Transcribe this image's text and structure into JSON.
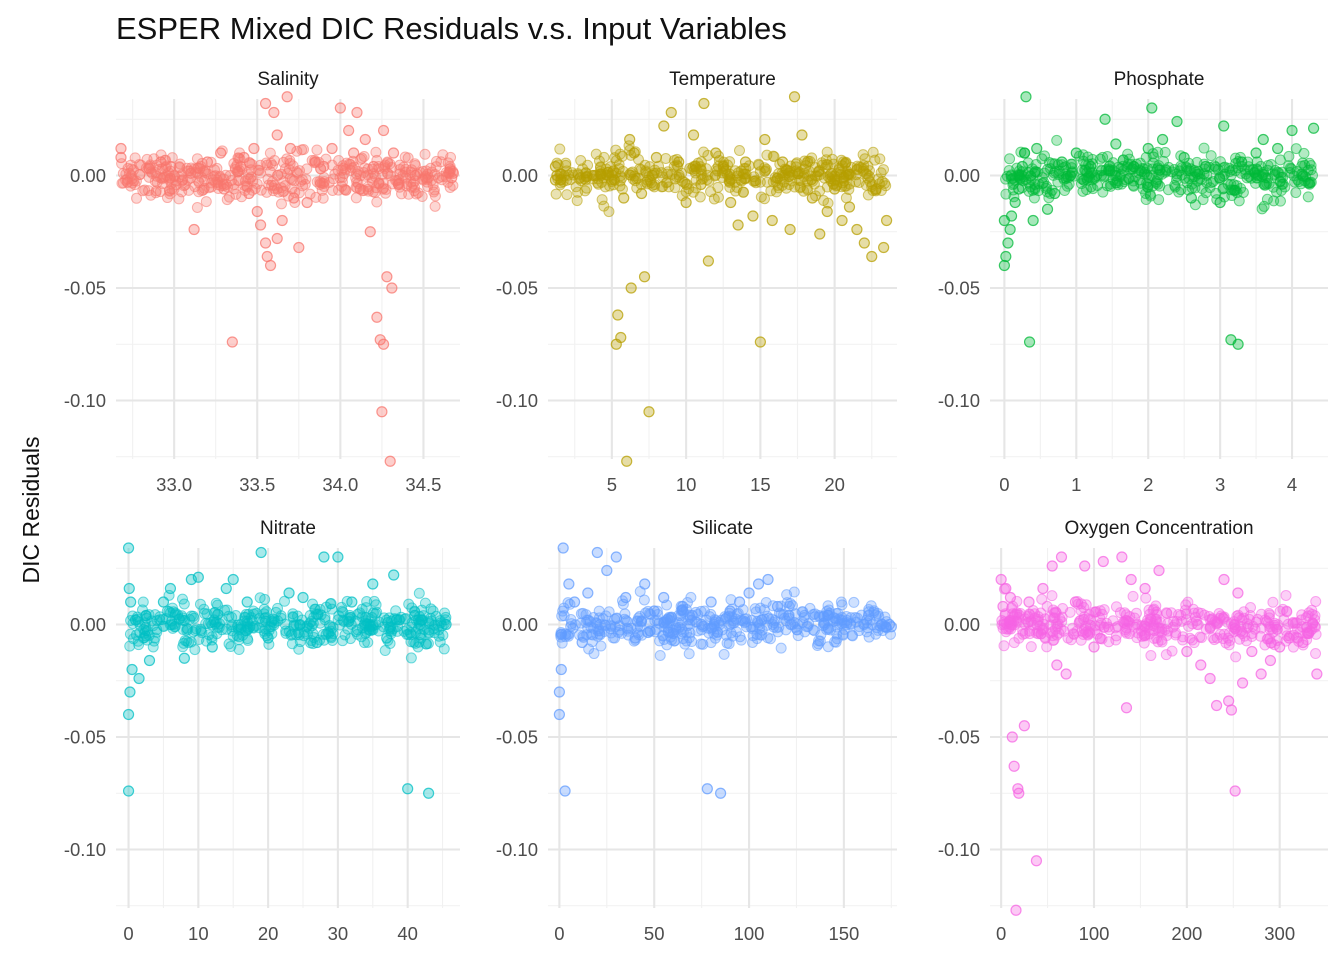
{
  "chart_data": {
    "type": "scatter",
    "title": "ESPER Mixed DIC Residuals v.s. Input Variables",
    "ylabel": "DIC Residuals",
    "grid": true,
    "legend": "none",
    "shared_y": {
      "ylim": [
        -0.126,
        0.034
      ],
      "ticks": [
        0.0,
        -0.05,
        -0.1
      ],
      "tick_labels": [
        "0.00",
        "-0.05",
        "-0.10"
      ]
    },
    "panels": [
      {
        "name": "Salinity",
        "color": "#F8766D",
        "xlim": [
          32.65,
          34.72
        ],
        "xticks": [
          33.0,
          33.5,
          34.0,
          34.5
        ],
        "xtick_labels": [
          "33.0",
          "33.5",
          "34.0",
          "34.5"
        ],
        "xminor": [
          32.75,
          33.25,
          33.75,
          34.25
        ],
        "points": [
          [
            32.68,
            0.012
          ],
          [
            32.68,
            0.008
          ],
          [
            32.72,
            -0.003
          ],
          [
            32.85,
            0.003
          ],
          [
            32.92,
            0.006
          ],
          [
            32.98,
            0.004
          ],
          [
            33.05,
            -0.002
          ],
          [
            33.1,
            0.001
          ],
          [
            33.12,
            -0.024
          ],
          [
            33.2,
            0.006
          ],
          [
            33.28,
            0.01
          ],
          [
            33.3,
            -0.006
          ],
          [
            33.35,
            -0.074
          ],
          [
            33.4,
            0.004
          ],
          [
            33.42,
            0.008
          ],
          [
            33.45,
            -0.008
          ],
          [
            33.48,
            0.012
          ],
          [
            33.5,
            -0.016
          ],
          [
            33.52,
            -0.022
          ],
          [
            33.55,
            -0.03
          ],
          [
            33.55,
            0.032
          ],
          [
            33.56,
            -0.036
          ],
          [
            33.58,
            -0.04
          ],
          [
            33.6,
            0.028
          ],
          [
            33.62,
            0.018
          ],
          [
            33.62,
            -0.028
          ],
          [
            33.65,
            -0.02
          ],
          [
            33.68,
            0.035
          ],
          [
            33.7,
            0.012
          ],
          [
            33.72,
            -0.01
          ],
          [
            33.75,
            -0.032
          ],
          [
            33.8,
            -0.012
          ],
          [
            33.85,
            0.006
          ],
          [
            33.9,
            0.004
          ],
          [
            33.95,
            0.012
          ],
          [
            34.0,
            0.03
          ],
          [
            34.05,
            0.02
          ],
          [
            34.08,
            0.01
          ],
          [
            34.1,
            0.028
          ],
          [
            34.12,
            -0.006
          ],
          [
            34.15,
            0.016
          ],
          [
            34.18,
            -0.025
          ],
          [
            34.2,
            0.004
          ],
          [
            34.22,
            -0.063
          ],
          [
            34.24,
            -0.073
          ],
          [
            34.25,
            -0.105
          ],
          [
            34.26,
            -0.075
          ],
          [
            34.26,
            0.02
          ],
          [
            34.28,
            -0.045
          ],
          [
            34.3,
            -0.127
          ],
          [
            34.31,
            -0.05
          ],
          [
            34.32,
            0.01
          ],
          [
            34.35,
            -0.004
          ],
          [
            34.45,
            0.0
          ],
          [
            34.66,
            0.003
          ],
          [
            34.67,
            -0.001
          ],
          [
            34.68,
            0.001
          ]
        ]
      },
      {
        "name": "Temperature",
        "color": "#B79F00",
        "xlim": [
          0.7,
          24.2
        ],
        "xticks": [
          5,
          10,
          15,
          20
        ],
        "xtick_labels": [
          "5",
          "10",
          "15",
          "20"
        ],
        "xminor": [
          2.5,
          7.5,
          12.5,
          17.5,
          22.5
        ],
        "points": [
          [
            1.2,
            0.004
          ],
          [
            1.2,
            -0.002
          ],
          [
            1.3,
            0.0
          ],
          [
            3.8,
            0.0
          ],
          [
            5.1,
            0.002
          ],
          [
            5.3,
            -0.075
          ],
          [
            5.4,
            -0.062
          ],
          [
            5.6,
            -0.072
          ],
          [
            5.8,
            -0.01
          ],
          [
            6.0,
            -0.127
          ],
          [
            6.2,
            0.016
          ],
          [
            6.3,
            -0.05
          ],
          [
            6.5,
            0.01
          ],
          [
            7.0,
            -0.008
          ],
          [
            7.2,
            -0.045
          ],
          [
            7.5,
            -0.105
          ],
          [
            8.0,
            0.008
          ],
          [
            8.5,
            0.022
          ],
          [
            9.0,
            0.028
          ],
          [
            9.5,
            0.006
          ],
          [
            10.0,
            -0.012
          ],
          [
            10.5,
            0.018
          ],
          [
            11.0,
            -0.004
          ],
          [
            11.2,
            0.032
          ],
          [
            11.5,
            -0.038
          ],
          [
            12.0,
            0.01
          ],
          [
            12.5,
            0.004
          ],
          [
            13.0,
            -0.012
          ],
          [
            13.5,
            -0.022
          ],
          [
            14.0,
            0.006
          ],
          [
            14.5,
            -0.018
          ],
          [
            15.0,
            -0.074
          ],
          [
            15.3,
            0.016
          ],
          [
            15.8,
            -0.02
          ],
          [
            16.5,
            0.006
          ],
          [
            17.0,
            -0.024
          ],
          [
            17.3,
            0.035
          ],
          [
            17.8,
            0.018
          ],
          [
            18.5,
            -0.01
          ],
          [
            19.0,
            -0.026
          ],
          [
            19.5,
            -0.016
          ],
          [
            20.0,
            -0.006
          ],
          [
            20.5,
            -0.02
          ],
          [
            21.0,
            -0.014
          ],
          [
            21.5,
            -0.024
          ],
          [
            22.0,
            -0.03
          ],
          [
            22.5,
            -0.036
          ],
          [
            22.8,
            -0.006
          ],
          [
            23.3,
            -0.032
          ],
          [
            23.5,
            -0.02
          ]
        ]
      },
      {
        "name": "Phosphate",
        "color": "#00BA38",
        "xlim": [
          -0.2,
          4.5
        ],
        "xticks": [
          0,
          1,
          2,
          3,
          4
        ],
        "xtick_labels": [
          "0",
          "1",
          "2",
          "3",
          "4"
        ],
        "xminor": [
          0.5,
          1.5,
          2.5,
          3.5
        ],
        "points": [
          [
            0.0,
            -0.04
          ],
          [
            0.0,
            -0.02
          ],
          [
            0.02,
            -0.036
          ],
          [
            0.05,
            -0.03
          ],
          [
            0.08,
            -0.024
          ],
          [
            0.1,
            -0.018
          ],
          [
            0.15,
            -0.012
          ],
          [
            0.2,
            -0.006
          ],
          [
            0.25,
            0.004
          ],
          [
            0.28,
            0.01
          ],
          [
            0.3,
            0.035
          ],
          [
            0.35,
            -0.074
          ],
          [
            0.4,
            -0.02
          ],
          [
            0.45,
            0.012
          ],
          [
            0.6,
            -0.015
          ],
          [
            0.7,
            -0.008
          ],
          [
            0.8,
            0.006
          ],
          [
            1.0,
            0.01
          ],
          [
            1.2,
            0.004
          ],
          [
            1.4,
            0.025
          ],
          [
            1.55,
            0.014
          ],
          [
            1.8,
            0.004
          ],
          [
            2.0,
            0.012
          ],
          [
            2.05,
            0.03
          ],
          [
            2.2,
            0.016
          ],
          [
            2.4,
            0.024
          ],
          [
            2.5,
            0.008
          ],
          [
            2.6,
            -0.01
          ],
          [
            2.8,
            0.004
          ],
          [
            3.0,
            -0.012
          ],
          [
            3.05,
            0.022
          ],
          [
            3.15,
            -0.073
          ],
          [
            3.25,
            -0.075
          ],
          [
            3.3,
            0.006
          ],
          [
            3.5,
            0.01
          ],
          [
            3.6,
            0.016
          ],
          [
            3.8,
            0.012
          ],
          [
            4.0,
            0.02
          ],
          [
            4.3,
            0.021
          ]
        ]
      },
      {
        "name": "Nitrate",
        "color": "#00BFC4",
        "xlim": [
          -1.8,
          47.5
        ],
        "xticks": [
          0,
          10,
          20,
          30,
          40
        ],
        "xtick_labels": [
          "0",
          "10",
          "20",
          "30",
          "40"
        ],
        "xminor": [
          5,
          15,
          25,
          35,
          45
        ],
        "points": [
          [
            0.0,
            0.034
          ],
          [
            0.0,
            -0.04
          ],
          [
            0.0,
            -0.074
          ],
          [
            0.1,
            0.016
          ],
          [
            0.2,
            -0.03
          ],
          [
            0.3,
            0.01
          ],
          [
            0.5,
            -0.02
          ],
          [
            1.0,
            0.002
          ],
          [
            1.5,
            -0.024
          ],
          [
            2.5,
            0.004
          ],
          [
            3.0,
            -0.016
          ],
          [
            5.0,
            0.01
          ],
          [
            6.0,
            0.016
          ],
          [
            8.0,
            -0.015
          ],
          [
            9.0,
            0.02
          ],
          [
            10.0,
            0.021
          ],
          [
            12.0,
            -0.01
          ],
          [
            14.0,
            0.016
          ],
          [
            15.0,
            0.02
          ],
          [
            17.0,
            0.01
          ],
          [
            19.0,
            0.032
          ],
          [
            20.0,
            -0.006
          ],
          [
            23.0,
            0.014
          ],
          [
            25.0,
            0.012
          ],
          [
            27.0,
            -0.008
          ],
          [
            28.0,
            0.03
          ],
          [
            30.0,
            0.03
          ],
          [
            32.0,
            0.01
          ],
          [
            35.0,
            0.018
          ],
          [
            37.0,
            -0.006
          ],
          [
            38.0,
            0.022
          ],
          [
            40.0,
            -0.073
          ],
          [
            41.0,
            0.004
          ],
          [
            42.0,
            0.002
          ],
          [
            43.0,
            -0.075
          ],
          [
            45.5,
            0.0
          ]
        ]
      },
      {
        "name": "Silicate",
        "color": "#619CFF",
        "xlim": [
          -6,
          178
        ],
        "xticks": [
          0,
          50,
          100,
          150
        ],
        "xtick_labels": [
          "0",
          "50",
          "100",
          "150"
        ],
        "xminor": [
          25,
          75,
          125,
          175
        ],
        "points": [
          [
            0,
            -0.04
          ],
          [
            0,
            -0.03
          ],
          [
            1,
            -0.02
          ],
          [
            2,
            0.034
          ],
          [
            3,
            -0.074
          ],
          [
            5,
            0.018
          ],
          [
            8,
            0.01
          ],
          [
            12,
            -0.008
          ],
          [
            15,
            0.014
          ],
          [
            20,
            0.032
          ],
          [
            25,
            0.024
          ],
          [
            30,
            0.03
          ],
          [
            35,
            0.012
          ],
          [
            40,
            -0.006
          ],
          [
            45,
            0.018
          ],
          [
            50,
            0.006
          ],
          [
            55,
            0.012
          ],
          [
            60,
            -0.004
          ],
          [
            65,
            0.008
          ],
          [
            70,
            0.004
          ],
          [
            75,
            0.0
          ],
          [
            78,
            -0.073
          ],
          [
            80,
            0.01
          ],
          [
            85,
            -0.075
          ],
          [
            90,
            0.006
          ],
          [
            95,
            0.01
          ],
          [
            100,
            0.014
          ],
          [
            105,
            0.018
          ],
          [
            110,
            0.02
          ],
          [
            115,
            0.008
          ],
          [
            122,
            0.0
          ],
          [
            163,
            0.004
          ],
          [
            170,
            0.0
          ],
          [
            172,
            -0.001
          ],
          [
            174,
            0.0
          ],
          [
            175,
            -0.001
          ]
        ]
      },
      {
        "name": "Oxygen Concentration",
        "color": "#F564E3",
        "xlim": [
          -12,
          352
        ],
        "xticks": [
          0,
          100,
          200,
          300
        ],
        "xtick_labels": [
          "0",
          "100",
          "200",
          "300"
        ],
        "xminor": [
          50,
          150,
          250
        ],
        "points": [
          [
            0,
            0.02
          ],
          [
            2,
            0.008
          ],
          [
            5,
            0.016
          ],
          [
            10,
            0.012
          ],
          [
            12,
            -0.05
          ],
          [
            14,
            -0.063
          ],
          [
            16,
            -0.127
          ],
          [
            18,
            -0.073
          ],
          [
            19,
            -0.075
          ],
          [
            25,
            -0.045
          ],
          [
            30,
            0.01
          ],
          [
            38,
            -0.105
          ],
          [
            45,
            0.016
          ],
          [
            55,
            0.026
          ],
          [
            60,
            -0.018
          ],
          [
            65,
            0.03
          ],
          [
            70,
            -0.022
          ],
          [
            80,
            0.01
          ],
          [
            90,
            0.026
          ],
          [
            100,
            -0.01
          ],
          [
            110,
            0.028
          ],
          [
            130,
            0.03
          ],
          [
            135,
            -0.037
          ],
          [
            140,
            0.02
          ],
          [
            155,
            0.016
          ],
          [
            170,
            0.024
          ],
          [
            200,
            -0.012
          ],
          [
            215,
            -0.018
          ],
          [
            225,
            -0.024
          ],
          [
            232,
            -0.036
          ],
          [
            240,
            0.02
          ],
          [
            245,
            -0.034
          ],
          [
            248,
            -0.038
          ],
          [
            252,
            -0.074
          ],
          [
            255,
            0.014
          ],
          [
            260,
            -0.026
          ],
          [
            270,
            -0.012
          ],
          [
            280,
            -0.022
          ],
          [
            290,
            -0.016
          ],
          [
            300,
            -0.01
          ],
          [
            310,
            -0.006
          ],
          [
            325,
            -0.008
          ],
          [
            340,
            -0.022
          ]
        ]
      }
    ]
  }
}
